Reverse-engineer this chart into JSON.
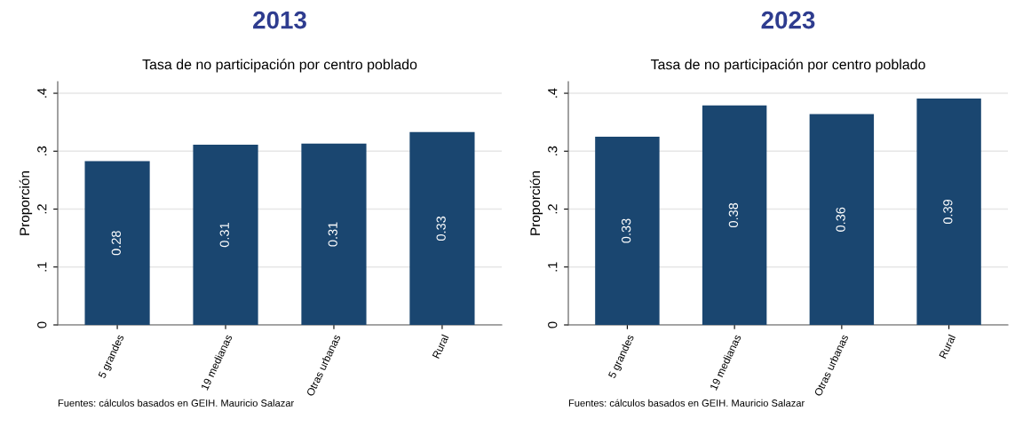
{
  "chart_data": [
    {
      "type": "bar",
      "title": "2013",
      "subtitle": "Tasa de no participación por centro poblado",
      "ylabel": "Proporción",
      "categories": [
        "5 grandes",
        "19 medianas",
        "Otras urbanas",
        "Rural"
      ],
      "values": [
        0.283,
        0.311,
        0.313,
        0.333
      ],
      "value_labels": [
        "0.28",
        "0.31",
        "0.31",
        "0.33"
      ],
      "color": "#1a4670",
      "ylim": [
        0,
        0.42
      ],
      "yticks": [
        {
          "value": 0,
          "label": "0"
        },
        {
          "value": 0.1,
          "label": ".1"
        },
        {
          "value": 0.2,
          "label": ".2"
        },
        {
          "value": 0.3,
          "label": ".3"
        },
        {
          "value": 0.4,
          "label": ".4"
        }
      ],
      "grid": "y",
      "annotations": [
        "Fuentes: cálculos basados en GEIH. Mauricio Salazar"
      ]
    },
    {
      "type": "bar",
      "title": "2023",
      "subtitle": "Tasa de no participación por centro poblado",
      "ylabel": "Proporción",
      "categories": [
        "5 grandes",
        "19 medianas",
        "Otras urbanas",
        "Rural"
      ],
      "values": [
        0.325,
        0.379,
        0.364,
        0.391
      ],
      "value_labels": [
        "0.33",
        "0.38",
        "0.36",
        "0.39"
      ],
      "color": "#1a4670",
      "ylim": [
        0,
        0.42
      ],
      "yticks": [
        {
          "value": 0,
          "label": "0"
        },
        {
          "value": 0.1,
          "label": ".1"
        },
        {
          "value": 0.2,
          "label": ".2"
        },
        {
          "value": 0.3,
          "label": ".3"
        },
        {
          "value": 0.4,
          "label": ".4"
        }
      ],
      "grid": "y",
      "annotations": [
        "Fuentes: cálculos basados en GEIH. Mauricio Salazar"
      ]
    }
  ]
}
